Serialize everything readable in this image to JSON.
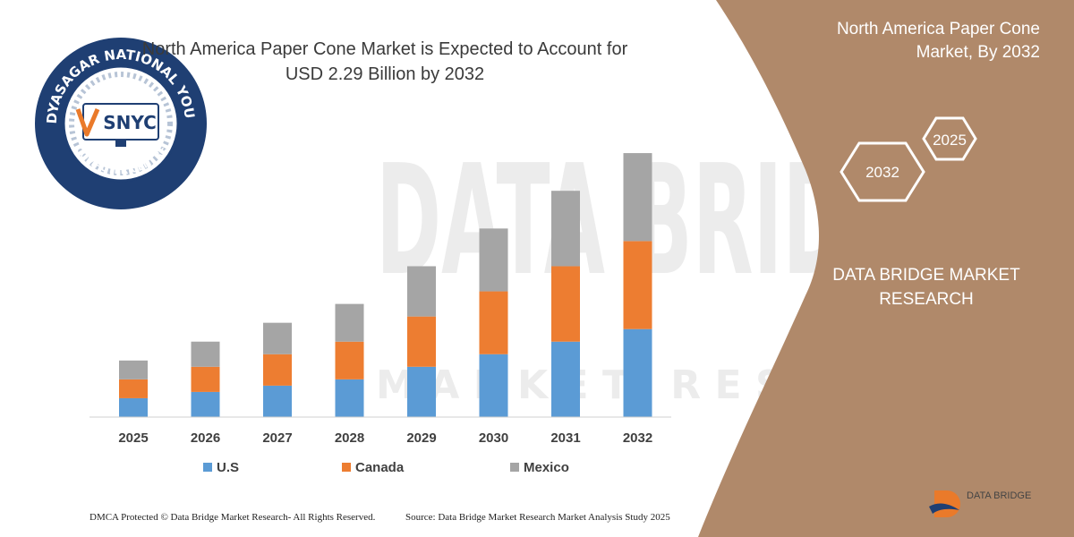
{
  "chart_data": {
    "type": "bar",
    "stacked": true,
    "title": "North America Paper Cone Market is Expected to Account for USD 2.29 Billion by 2032",
    "categories": [
      "2025",
      "2026",
      "2027",
      "2028",
      "2029",
      "2030",
      "2031",
      "2032"
    ],
    "series": [
      {
        "name": "U.S",
        "color": "#5b9bd5",
        "values": [
          3.0,
          4.0,
          5.0,
          6.0,
          8.0,
          10.0,
          12.0,
          14.0
        ]
      },
      {
        "name": "Canada",
        "color": "#ed7d31",
        "values": [
          3.0,
          4.0,
          5.0,
          6.0,
          8.0,
          10.0,
          12.0,
          14.0
        ]
      },
      {
        "name": "Mexico",
        "color": "#a5a5a5",
        "values": [
          3.0,
          4.0,
          5.0,
          6.0,
          8.0,
          10.0,
          12.0,
          14.0
        ]
      }
    ],
    "ylim": [
      0,
      45
    ],
    "grid": false,
    "legend_position": "bottom"
  },
  "title": {
    "line1": "North America Paper Cone Market is Expected to Account for",
    "line2": "USD 2.29 Billion by 2032"
  },
  "side_panel": {
    "title_line1": "North America Paper Cone",
    "title_line2": "Market, By 2032",
    "hex_2025": "2025",
    "hex_2032": "2032",
    "company_line1": "DATA BRIDGE MARKET",
    "company_line2": "RESEARCH",
    "panel_color": "#b0896a"
  },
  "footer": {
    "copyright": "DMCA Protected © Data Bridge Market Research-  All Rights Reserved.",
    "source": "Source: Data Bridge Market Research  Market Analysis Study 2025"
  },
  "seal": {
    "top_text": "VIDYASAGAR NATIONAL YOUTH",
    "bottom_text": "COMPUTER CENTRE",
    "initials": "SNYC",
    "ring_color": "#1f3f73"
  },
  "corner_logo": {
    "name": "DATA BRIDGE"
  },
  "watermark": {
    "text": "DATA BRIDGE",
    "subtext": "MARKET RESEARCH"
  }
}
